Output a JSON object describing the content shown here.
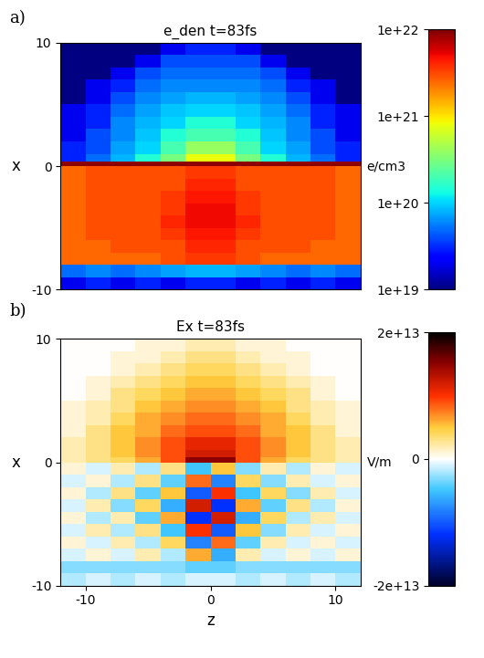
{
  "chart_data": [
    {
      "type": "heatmap",
      "panel_label": "a)",
      "title": "e_den t=83fs",
      "y_label": "x",
      "tick_labels": "y",
      "xlim": [
        -12,
        12
      ],
      "ylim": [
        -10,
        10
      ],
      "yticks": [
        -10,
        0,
        10
      ],
      "z_edges": [
        -12,
        -10,
        -8,
        -6,
        -4,
        -2,
        0,
        2,
        4,
        6,
        8,
        10,
        12
      ],
      "x_edges": [
        -10,
        -9,
        -8,
        -7,
        -6,
        -5,
        -4,
        -3,
        -2,
        -1,
        0,
        0.4,
        1,
        2,
        3,
        4,
        5,
        6,
        7,
        8,
        9,
        10
      ],
      "cells": [
        [
          2e+19,
          3e+19,
          2e+19,
          3e+19,
          2e+19,
          3e+19,
          3e+19,
          2e+19,
          3e+19,
          2e+19,
          3e+19,
          2e+19
        ],
        [
          5e+19,
          6e+19,
          5e+19,
          6e+19,
          7e+19,
          8e+19,
          8e+19,
          7e+19,
          6e+19,
          5e+19,
          6e+19,
          5e+19
        ],
        [
          2.5e+21,
          2.5e+21,
          2.5e+21,
          2.5e+21,
          3e+21,
          3.5e+21,
          3.5e+21,
          3e+21,
          2.5e+21,
          2.5e+21,
          2.5e+21,
          2.5e+21
        ],
        [
          2.5e+21,
          2.5e+21,
          3e+21,
          3e+21,
          3e+21,
          4e+21,
          4e+21,
          3e+21,
          3e+21,
          3e+21,
          2.5e+21,
          2.5e+21
        ],
        [
          2.5e+21,
          3e+21,
          3e+21,
          3e+21,
          3.5e+21,
          4.5e+21,
          4.5e+21,
          3.5e+21,
          3e+21,
          3e+21,
          3e+21,
          2.5e+21
        ],
        [
          2.5e+21,
          3e+21,
          3e+21,
          3e+21,
          4e+21,
          5e+21,
          5e+21,
          4e+21,
          3e+21,
          3e+21,
          3e+21,
          2.5e+21
        ],
        [
          2.5e+21,
          3e+21,
          3e+21,
          3e+21,
          3.5e+21,
          5e+21,
          5e+21,
          3.5e+21,
          3e+21,
          3e+21,
          3e+21,
          2.5e+21
        ],
        [
          2.5e+21,
          3e+21,
          3e+21,
          3e+21,
          3.5e+21,
          4.5e+21,
          4.5e+21,
          3.5e+21,
          3e+21,
          3e+21,
          3e+21,
          2.5e+21
        ],
        [
          2.5e+21,
          3e+21,
          3e+21,
          3e+21,
          3e+21,
          4e+21,
          4e+21,
          3e+21,
          3e+21,
          3e+21,
          3e+21,
          2.5e+21
        ],
        [
          2.5e+21,
          3e+21,
          3e+21,
          3e+21,
          3e+21,
          3.5e+21,
          3.5e+21,
          3e+21,
          3e+21,
          3e+21,
          3e+21,
          2.5e+21
        ],
        [
          9e+21,
          9e+21,
          9e+21,
          9e+21,
          9e+21,
          9e+21,
          9e+21,
          9e+21,
          9e+21,
          9e+21,
          9e+21,
          9e+21
        ],
        [
          3e+19,
          5e+19,
          8e+19,
          1.5e+20,
          3e+20,
          8e+20,
          8e+20,
          3e+20,
          1.5e+20,
          8e+19,
          5e+19,
          3e+19
        ],
        [
          3e+19,
          4e+19,
          7e+19,
          1e+20,
          2e+20,
          4e+20,
          4e+20,
          2e+20,
          1e+20,
          7e+19,
          4e+19,
          3e+19
        ],
        [
          2e+19,
          4e+19,
          6e+19,
          9e+19,
          1.5e+20,
          2e+20,
          2e+20,
          1.5e+20,
          9e+19,
          6e+19,
          4e+19,
          2e+19
        ],
        [
          2e+19,
          3e+19,
          6e+19,
          8e+19,
          1e+20,
          1.5e+20,
          1.5e+20,
          1e+20,
          8e+19,
          6e+19,
          3e+19,
          2e+19
        ],
        [
          2e+19,
          3e+19,
          5e+19,
          7e+19,
          9e+19,
          1e+20,
          1e+20,
          9e+19,
          7e+19,
          5e+19,
          3e+19,
          2e+19
        ],
        [
          1e+19,
          2e+19,
          4e+19,
          6e+19,
          7e+19,
          8e+19,
          8e+19,
          7e+19,
          6e+19,
          4e+19,
          2e+19,
          1e+19
        ],
        [
          1e+19,
          2e+19,
          3e+19,
          5e+19,
          6e+19,
          6e+19,
          6e+19,
          6e+19,
          5e+19,
          3e+19,
          2e+19,
          1e+19
        ],
        [
          1e+19,
          1e+19,
          2e+19,
          4e+19,
          5e+19,
          5e+19,
          5e+19,
          5e+19,
          4e+19,
          2e+19,
          1e+19,
          1e+19
        ],
        [
          1e+19,
          1e+19,
          1e+19,
          2e+19,
          4e+19,
          4e+19,
          4e+19,
          4e+19,
          2e+19,
          1e+19,
          1e+19,
          1e+19
        ],
        [
          1e+19,
          1e+19,
          1e+19,
          1e+19,
          2e+19,
          3e+19,
          3e+19,
          2e+19,
          1e+19,
          1e+19,
          1e+19,
          1e+19
        ]
      ],
      "colorbar": {
        "label": "e/cm3",
        "log": true,
        "range": [
          1e+19,
          1e+22
        ],
        "ticks": [
          {
            "value": 1e+19,
            "label": "1e+19"
          },
          {
            "value": 1e+20,
            "label": "1e+20"
          },
          {
            "value": 1e+21,
            "label": "1e+21"
          },
          {
            "value": 1e+22,
            "label": "1e+22"
          }
        ]
      }
    },
    {
      "type": "heatmap",
      "panel_label": "b)",
      "title": "Ex t=83fs",
      "x_label": "z",
      "y_label": "x",
      "xlim": [
        -12,
        12
      ],
      "ylim": [
        -10,
        10
      ],
      "xticks": [
        -10,
        0,
        10
      ],
      "yticks": [
        -10,
        0,
        10
      ],
      "z_edges": [
        -12,
        -10,
        -8,
        -6,
        -4,
        -2,
        0,
        2,
        4,
        6,
        8,
        10,
        12
      ],
      "x_edges": [
        -10,
        -9,
        -8,
        -7,
        -6,
        -5,
        -4,
        -3,
        -2,
        -1,
        0,
        0.4,
        1,
        2,
        3,
        4,
        5,
        6,
        7,
        8,
        9,
        10
      ],
      "cells": [
        [
          -2000000000000.0,
          -1000000000000.0,
          -2000000000000.0,
          -1000000000000.0,
          -2000000000000.0,
          -1000000000000.0,
          -1000000000000.0,
          -2000000000000.0,
          -1000000000000.0,
          -2000000000000.0,
          -1000000000000.0,
          -2000000000000.0
        ],
        [
          -3000000000000.0,
          -3000000000000.0,
          -3000000000000.0,
          -3000000000000.0,
          -3000000000000.0,
          -4000000000000.0,
          -4000000000000.0,
          -3000000000000.0,
          -3000000000000.0,
          -3000000000000.0,
          -3000000000000.0,
          -3000000000000.0
        ],
        [
          -1000000000000.0,
          1000000000000.0,
          -1000000000000.0,
          2000000000000.0,
          -2000000000000.0,
          6000000000000.0,
          -6000000000000.0,
          2000000000000.0,
          -1000000000000.0,
          1000000000000.0,
          -1000000000000.0,
          1000000000000.0
        ],
        [
          1000000000000.0,
          -1000000000000.0,
          2000000000000.0,
          -2000000000000.0,
          4000000000000.0,
          -8000000000000.0,
          8000000000000.0,
          -4000000000000.0,
          2000000000000.0,
          -1000000000000.0,
          1000000000000.0,
          -1000000000000.0
        ],
        [
          -1000000000000.0,
          2000000000000.0,
          -2000000000000.0,
          3000000000000.0,
          -5000000000000.0,
          10000000000000.0,
          -10000000000000.0,
          5000000000000.0,
          -3000000000000.0,
          2000000000000.0,
          -1000000000000.0,
          1000000000000.0
        ],
        [
          1000000000000.0,
          -2000000000000.0,
          2000000000000.0,
          -4000000000000.0,
          6000000000000.0,
          -12000000000000.0,
          12000000000000.0,
          -6000000000000.0,
          4000000000000.0,
          -2000000000000.0,
          2000000000000.0,
          -1000000000000.0
        ],
        [
          -1000000000000.0,
          2000000000000.0,
          -3000000000000.0,
          4000000000000.0,
          -6000000000000.0,
          12000000000000.0,
          -12000000000000.0,
          6000000000000.0,
          -4000000000000.0,
          3000000000000.0,
          -2000000000000.0,
          1000000000000.0
        ],
        [
          1000000000000.0,
          -2000000000000.0,
          3000000000000.0,
          -4000000000000.0,
          5000000000000.0,
          -10000000000000.0,
          10000000000000.0,
          -5000000000000.0,
          4000000000000.0,
          -3000000000000.0,
          2000000000000.0,
          -1000000000000.0
        ],
        [
          -1000000000000.0,
          1000000000000.0,
          -2000000000000.0,
          3000000000000.0,
          -4000000000000.0,
          8000000000000.0,
          -8000000000000.0,
          4000000000000.0,
          -3000000000000.0,
          2000000000000.0,
          -1000000000000.0,
          1000000000000.0
        ],
        [
          1000000000000.0,
          -1000000000000.0,
          2000000000000.0,
          -2000000000000.0,
          3000000000000.0,
          -5000000000000.0,
          5000000000000.0,
          -3000000000000.0,
          2000000000000.0,
          -2000000000000.0,
          1000000000000.0,
          -1000000000000.0
        ],
        [
          2000000000000.0,
          3000000000000.0,
          4000000000000.0,
          6000000000000.0,
          9000000000000.0,
          15000000000000.0,
          15000000000000.0,
          9000000000000.0,
          6000000000000.0,
          4000000000000.0,
          3000000000000.0,
          2000000000000.0
        ],
        [
          2000000000000.0,
          3000000000000.0,
          5000000000000.0,
          7000000000000.0,
          9000000000000.0,
          12000000000000.0,
          12000000000000.0,
          9000000000000.0,
          7000000000000.0,
          5000000000000.0,
          3000000000000.0,
          2000000000000.0
        ],
        [
          2000000000000.0,
          3000000000000.0,
          5000000000000.0,
          7000000000000.0,
          9000000000000.0,
          11000000000000.0,
          11000000000000.0,
          9000000000000.0,
          7000000000000.0,
          5000000000000.0,
          3000000000000.0,
          2000000000000.0
        ],
        [
          1000000000000.0,
          3000000000000.0,
          5000000000000.0,
          6000000000000.0,
          8000000000000.0,
          9000000000000.0,
          9000000000000.0,
          8000000000000.0,
          6000000000000.0,
          5000000000000.0,
          3000000000000.0,
          1000000000000.0
        ],
        [
          1000000000000.0,
          2000000000000.0,
          4000000000000.0,
          6000000000000.0,
          7000000000000.0,
          8000000000000.0,
          8000000000000.0,
          7000000000000.0,
          6000000000000.0,
          4000000000000.0,
          2000000000000.0,
          1000000000000.0
        ],
        [
          1000000000000.0,
          2000000000000.0,
          3000000000000.0,
          5000000000000.0,
          6000000000000.0,
          7000000000000.0,
          7000000000000.0,
          6000000000000.0,
          5000000000000.0,
          3000000000000.0,
          2000000000000.0,
          1000000000000.0
        ],
        [
          0,
          1000000000000.0,
          3000000000000.0,
          4000000000000.0,
          5000000000000.0,
          6000000000000.0,
          6000000000000.0,
          5000000000000.0,
          4000000000000.0,
          3000000000000.0,
          1000000000000.0,
          0
        ],
        [
          0,
          1000000000000.0,
          2000000000000.0,
          3000000000000.0,
          4000000000000.0,
          5000000000000.0,
          5000000000000.0,
          4000000000000.0,
          3000000000000.0,
          2000000000000.0,
          1000000000000.0,
          0
        ],
        [
          0,
          0,
          1000000000000.0,
          2000000000000.0,
          3000000000000.0,
          4000000000000.0,
          4000000000000.0,
          3000000000000.0,
          2000000000000.0,
          1000000000000.0,
          0,
          0
        ],
        [
          0,
          0,
          1000000000000.0,
          1000000000000.0,
          2000000000000.0,
          3000000000000.0,
          3000000000000.0,
          2000000000000.0,
          1000000000000.0,
          1000000000000.0,
          0,
          0
        ],
        [
          0,
          0,
          0,
          1000000000000.0,
          1000000000000.0,
          2000000000000.0,
          2000000000000.0,
          1000000000000.0,
          1000000000000.0,
          0,
          0,
          0
        ]
      ],
      "colorbar": {
        "label": "V/m",
        "range": [
          -20000000000000.0,
          20000000000000.0
        ],
        "ticks": [
          {
            "value": -20000000000000.0,
            "label": "-2e+13"
          },
          0,
          {
            "value": 20000000000000.0,
            "label": "2e+13"
          }
        ]
      }
    }
  ]
}
